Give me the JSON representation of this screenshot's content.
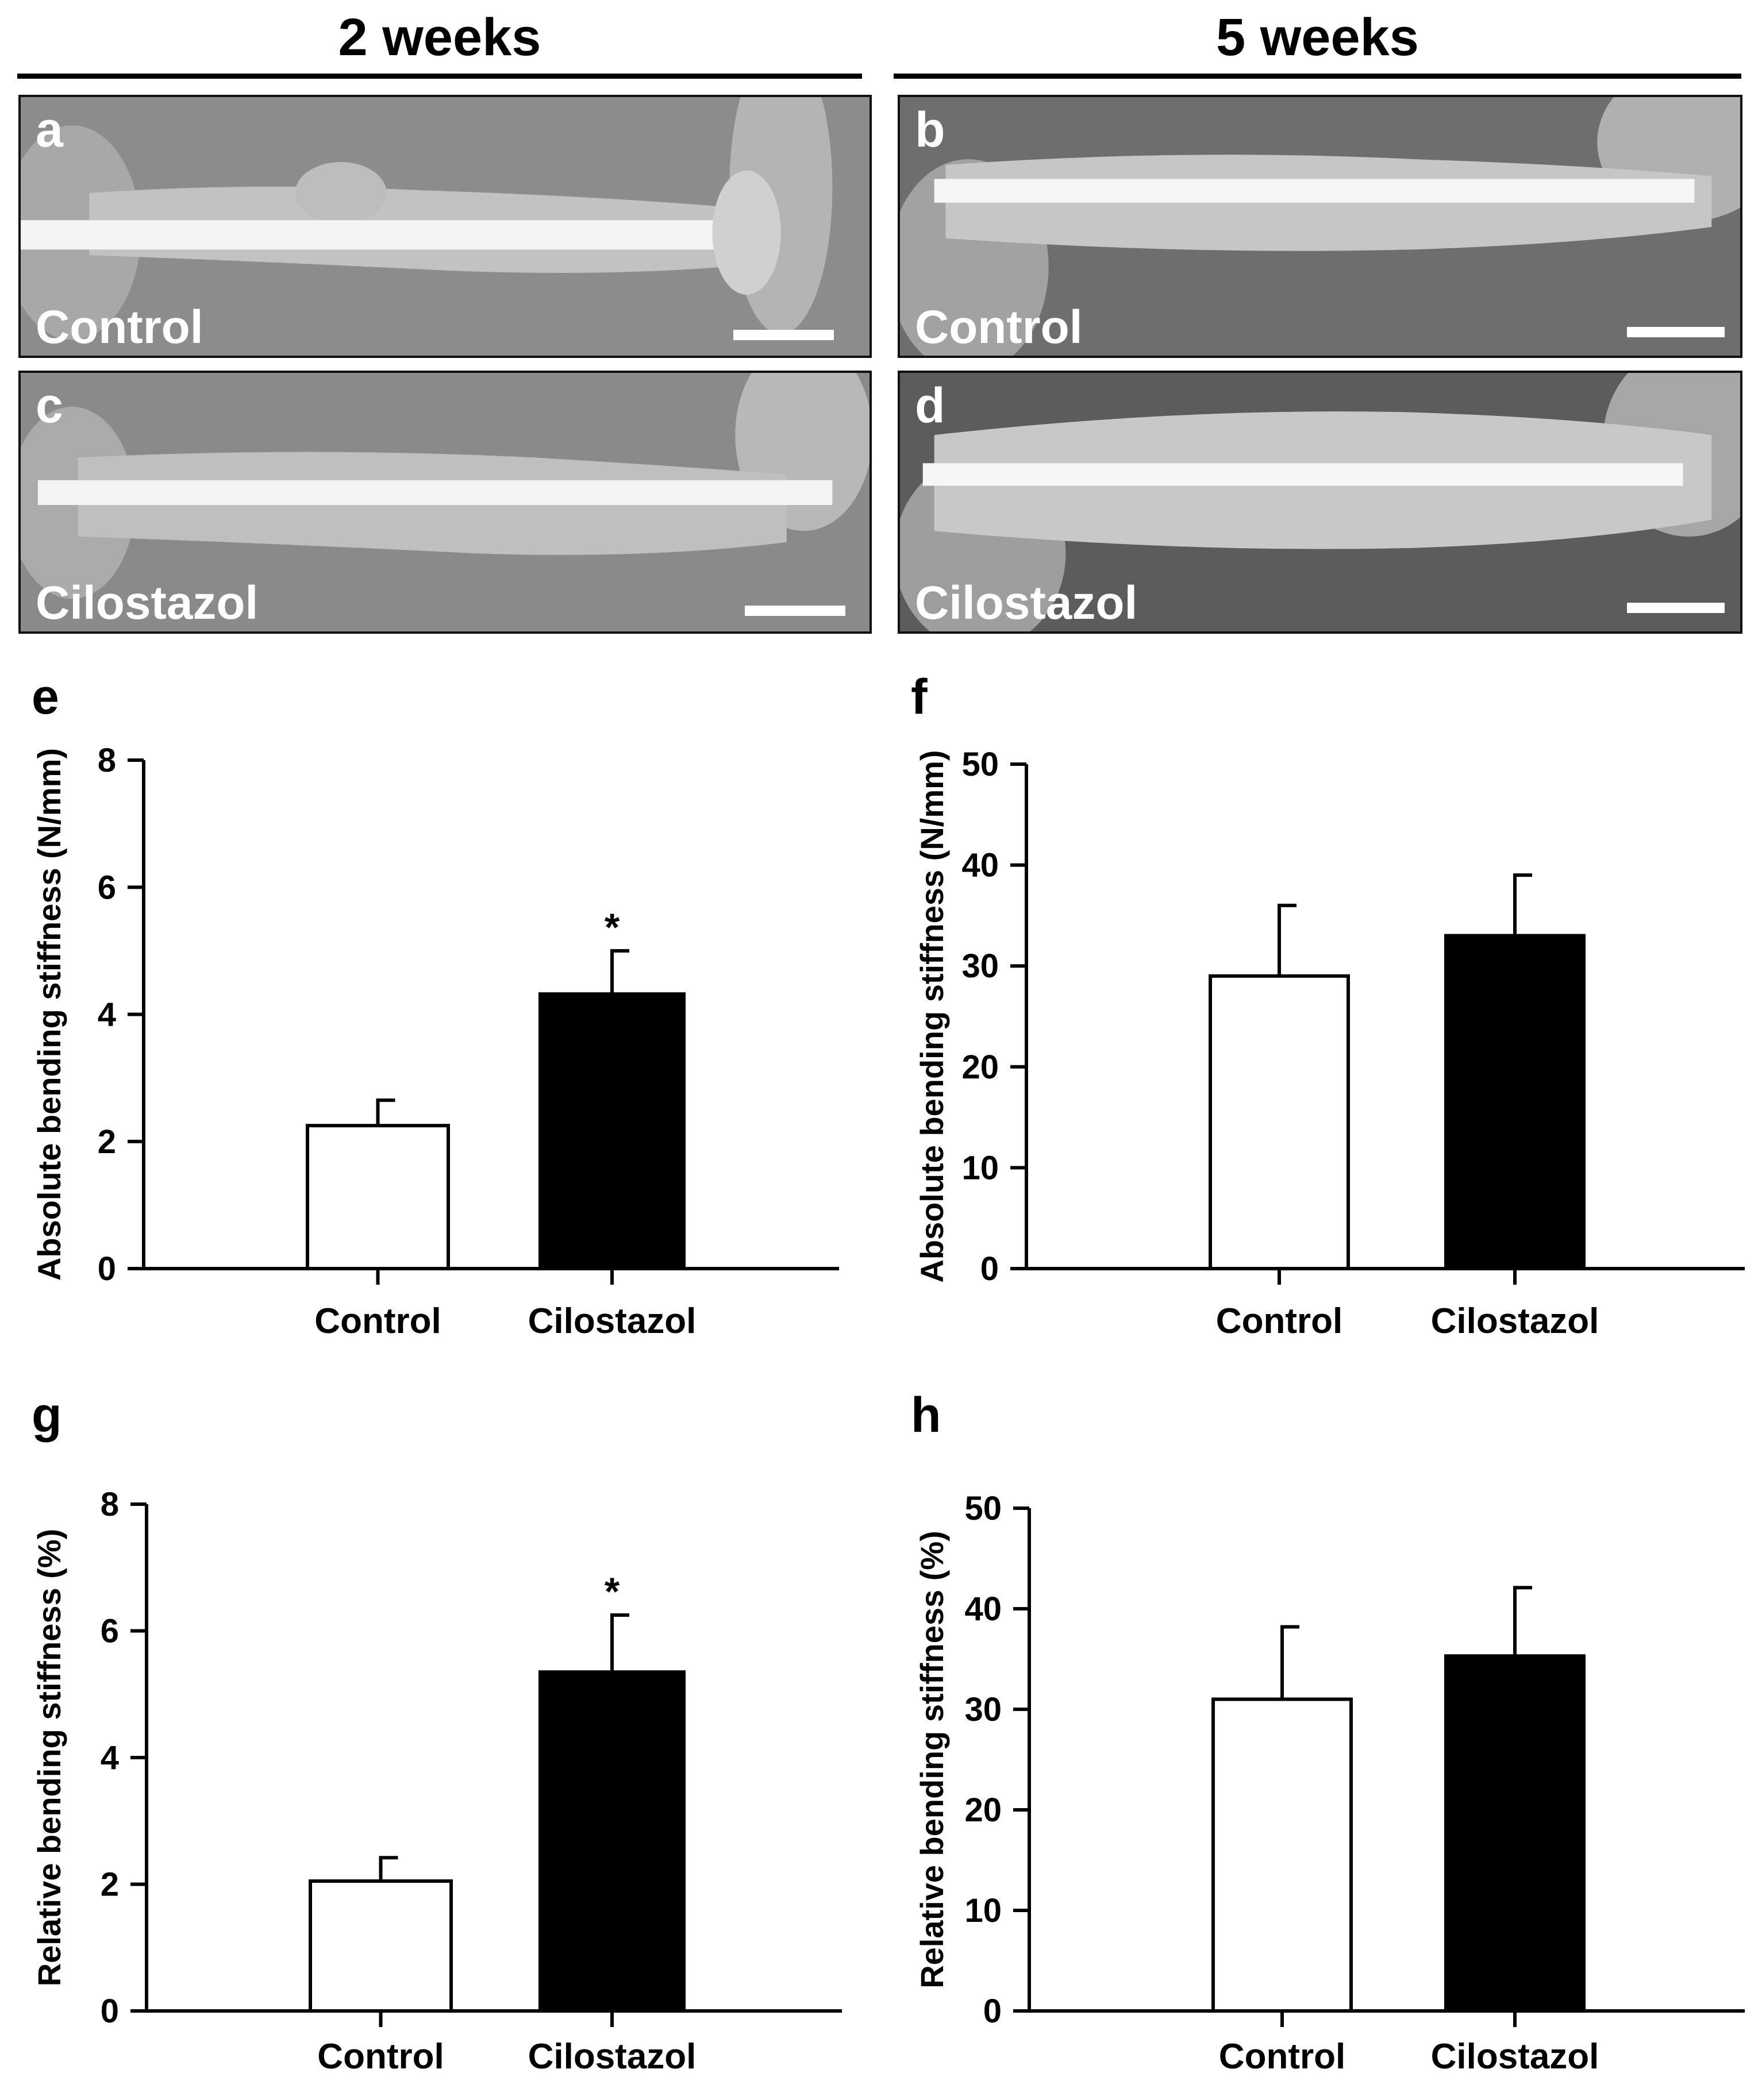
{
  "headers": {
    "left": "2 weeks",
    "right": "5 weeks"
  },
  "photos": [
    {
      "letter": "a",
      "label": "Control"
    },
    {
      "letter": "b",
      "label": "Control"
    },
    {
      "letter": "c",
      "label": "Cilostazol"
    },
    {
      "letter": "d",
      "label": "Cilostazol"
    }
  ],
  "colors": {
    "control_fill": "#ffffff",
    "cilostazol_fill": "#000000",
    "axis": "#000000",
    "xray_background": "#8a8a8a"
  },
  "chart_data": [
    {
      "panel": "e",
      "type": "bar",
      "categories": [
        "Control",
        "Cilostazol"
      ],
      "values": [
        2.25,
        4.32
      ],
      "errors": [
        0.4,
        0.68
      ],
      "significance": [
        "",
        "*"
      ],
      "ylabel": "Absolute bending stiffness (N/mm)",
      "xlabel": "",
      "ylim": [
        0,
        8
      ],
      "yticks": [
        0,
        2,
        4,
        6,
        8
      ]
    },
    {
      "panel": "f",
      "type": "bar",
      "categories": [
        "Control",
        "Cilostazol"
      ],
      "values": [
        29,
        33
      ],
      "errors": [
        7,
        6
      ],
      "significance": [
        "",
        ""
      ],
      "ylabel": "Absolute bending stiffness (N/mm)",
      "xlabel": "",
      "ylim": [
        0,
        50
      ],
      "yticks": [
        0,
        10,
        20,
        30,
        40,
        50
      ]
    },
    {
      "panel": "g",
      "type": "bar",
      "categories": [
        "Control",
        "Cilostazol"
      ],
      "values": [
        2.05,
        5.35
      ],
      "errors": [
        0.37,
        0.9
      ],
      "significance": [
        "",
        "*"
      ],
      "ylabel": "Relative bending stiffness (%)",
      "xlabel": "",
      "ylim": [
        0,
        8
      ],
      "yticks": [
        0,
        2,
        4,
        6,
        8
      ]
    },
    {
      "panel": "h",
      "type": "bar",
      "categories": [
        "Control",
        "Cilostazol"
      ],
      "values": [
        31,
        35.3
      ],
      "errors": [
        7.2,
        6.8
      ],
      "significance": [
        "",
        ""
      ],
      "ylabel": "Relative bending stiffness (%)",
      "xlabel": "",
      "ylim": [
        0,
        50
      ],
      "yticks": [
        0,
        10,
        20,
        30,
        40,
        50
      ]
    }
  ]
}
